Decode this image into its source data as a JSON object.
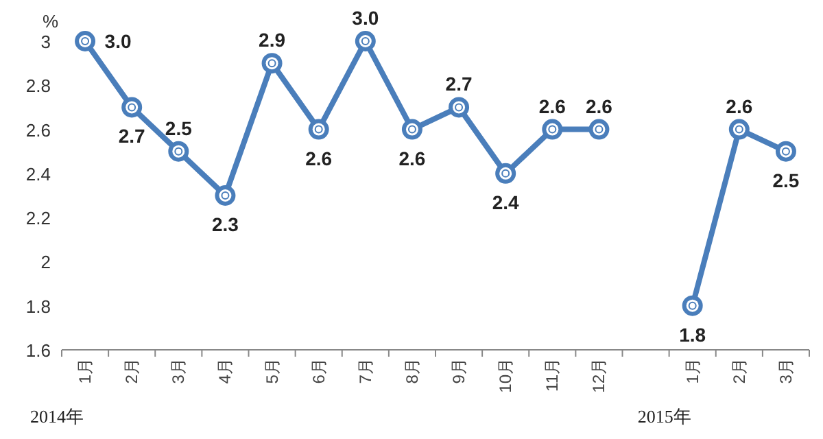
{
  "chart_data": {
    "type": "line",
    "ylabel": "%",
    "categories": [
      "1月",
      "2月",
      "3月",
      "4月",
      "5月",
      "6月",
      "7月",
      "8月",
      "9月",
      "10月",
      "11月",
      "12月",
      null,
      "1月",
      "2月",
      "3月"
    ],
    "series": [
      {
        "color": "#4a7ebb",
        "values": [
          3.0,
          2.7,
          2.5,
          2.3,
          2.9,
          2.6,
          3.0,
          2.6,
          2.7,
          2.4,
          2.6,
          2.6,
          null,
          1.8,
          2.6,
          2.5
        ],
        "value_labels": [
          "3.0",
          "2.7",
          "2.5",
          "2.3",
          "2.9",
          "2.6",
          "3.0",
          "2.6",
          "2.7",
          "2.4",
          "2.6",
          "2.6",
          null,
          "1.8",
          "2.6",
          "2.5"
        ]
      }
    ],
    "ylim": [
      1.6,
      3
    ],
    "yticks": [
      1.6,
      1.8,
      {
        "value": 2,
        "label": "2"
      },
      2.2,
      2.4,
      2.6,
      2.8,
      {
        "value": 3,
        "label": "3"
      }
    ],
    "annotations": [
      "2014年",
      "2015年"
    ],
    "grid": false,
    "marker": "circle",
    "line_style": "solid"
  }
}
